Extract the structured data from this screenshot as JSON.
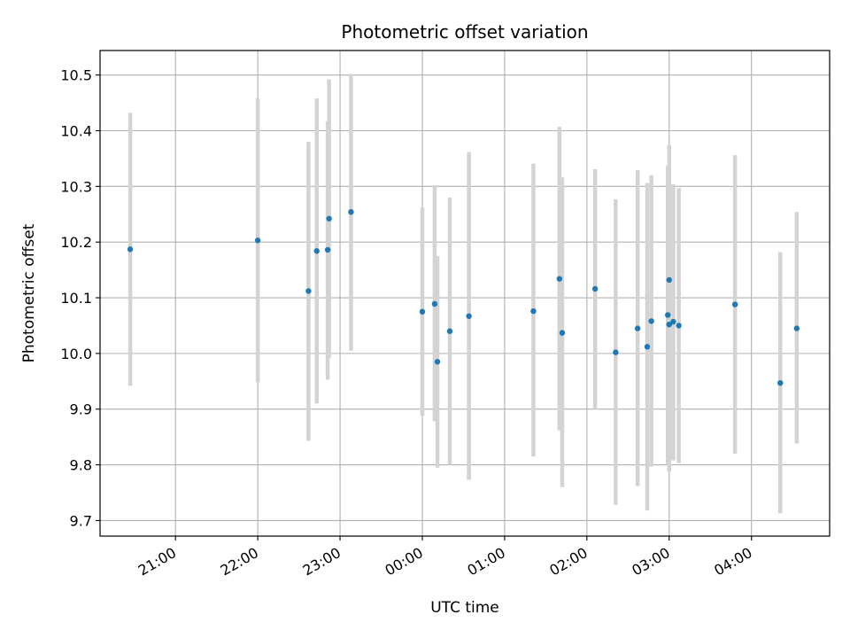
{
  "chart_data": {
    "type": "scatter",
    "title": "Photometric offset variation",
    "xlabel": "UTC time",
    "ylabel": "Photometric offset",
    "grid": true,
    "x_axis": "time (hours, UTC; after 24:00 continues past midnight)",
    "xlim": [
      "20:05",
      "04:57"
    ],
    "ylim": [
      9.672,
      10.544
    ],
    "xticks": [
      "21:00",
      "22:00",
      "23:00",
      "00:00",
      "01:00",
      "02:00",
      "03:00",
      "04:00"
    ],
    "yticks": [
      "9.7",
      "9.8",
      "9.9",
      "10.0",
      "10.1",
      "10.2",
      "10.3",
      "10.4",
      "10.5"
    ],
    "marker_color": "#1f77b4",
    "errorbar_color": "#d3d3d3",
    "points": [
      {
        "t": "20:27",
        "y": 10.187,
        "lo": 9.942,
        "hi": 10.432
      },
      {
        "t": "22:00",
        "y": 10.203,
        "lo": 9.948,
        "hi": 10.458
      },
      {
        "t": "22:37",
        "y": 10.112,
        "lo": 9.843,
        "hi": 10.38
      },
      {
        "t": "22:43",
        "y": 10.184,
        "lo": 9.91,
        "hi": 10.458
      },
      {
        "t": "22:51",
        "y": 10.186,
        "lo": 9.953,
        "hi": 10.417
      },
      {
        "t": "22:52",
        "y": 10.242,
        "lo": 9.992,
        "hi": 10.492
      },
      {
        "t": "23:08",
        "y": 10.254,
        "lo": 10.005,
        "hi": 10.502
      },
      {
        "t": "00:00",
        "y": 10.075,
        "lo": 9.888,
        "hi": 10.262
      },
      {
        "t": "00:09",
        "y": 10.089,
        "lo": 9.878,
        "hi": 10.302
      },
      {
        "t": "00:11",
        "y": 9.985,
        "lo": 9.795,
        "hi": 10.175
      },
      {
        "t": "00:20",
        "y": 10.04,
        "lo": 9.8,
        "hi": 10.28
      },
      {
        "t": "00:34",
        "y": 10.067,
        "lo": 9.773,
        "hi": 10.362
      },
      {
        "t": "01:21",
        "y": 10.076,
        "lo": 9.815,
        "hi": 10.341
      },
      {
        "t": "01:40",
        "y": 10.134,
        "lo": 9.862,
        "hi": 10.407
      },
      {
        "t": "01:42",
        "y": 10.037,
        "lo": 9.76,
        "hi": 10.316
      },
      {
        "t": "02:06",
        "y": 10.116,
        "lo": 9.9,
        "hi": 10.331
      },
      {
        "t": "02:21",
        "y": 10.002,
        "lo": 9.728,
        "hi": 10.277
      },
      {
        "t": "02:37",
        "y": 10.045,
        "lo": 9.762,
        "hi": 10.329
      },
      {
        "t": "02:44",
        "y": 10.012,
        "lo": 9.718,
        "hi": 10.306
      },
      {
        "t": "02:47",
        "y": 10.058,
        "lo": 9.797,
        "hi": 10.32
      },
      {
        "t": "02:59",
        "y": 10.069,
        "lo": 9.8,
        "hi": 10.337
      },
      {
        "t": "03:00",
        "y": 10.132,
        "lo": 9.788,
        "hi": 10.374
      },
      {
        "t": "03:00",
        "y": 10.052,
        "lo": 9.8,
        "hi": 10.303
      },
      {
        "t": "03:03",
        "y": 10.057,
        "lo": 9.808,
        "hi": 10.304
      },
      {
        "t": "03:07",
        "y": 10.05,
        "lo": 9.803,
        "hi": 10.297
      },
      {
        "t": "03:48",
        "y": 10.088,
        "lo": 9.82,
        "hi": 10.356
      },
      {
        "t": "04:21",
        "y": 9.947,
        "lo": 9.713,
        "hi": 10.182
      },
      {
        "t": "04:33",
        "y": 10.045,
        "lo": 9.838,
        "hi": 10.254
      }
    ]
  }
}
